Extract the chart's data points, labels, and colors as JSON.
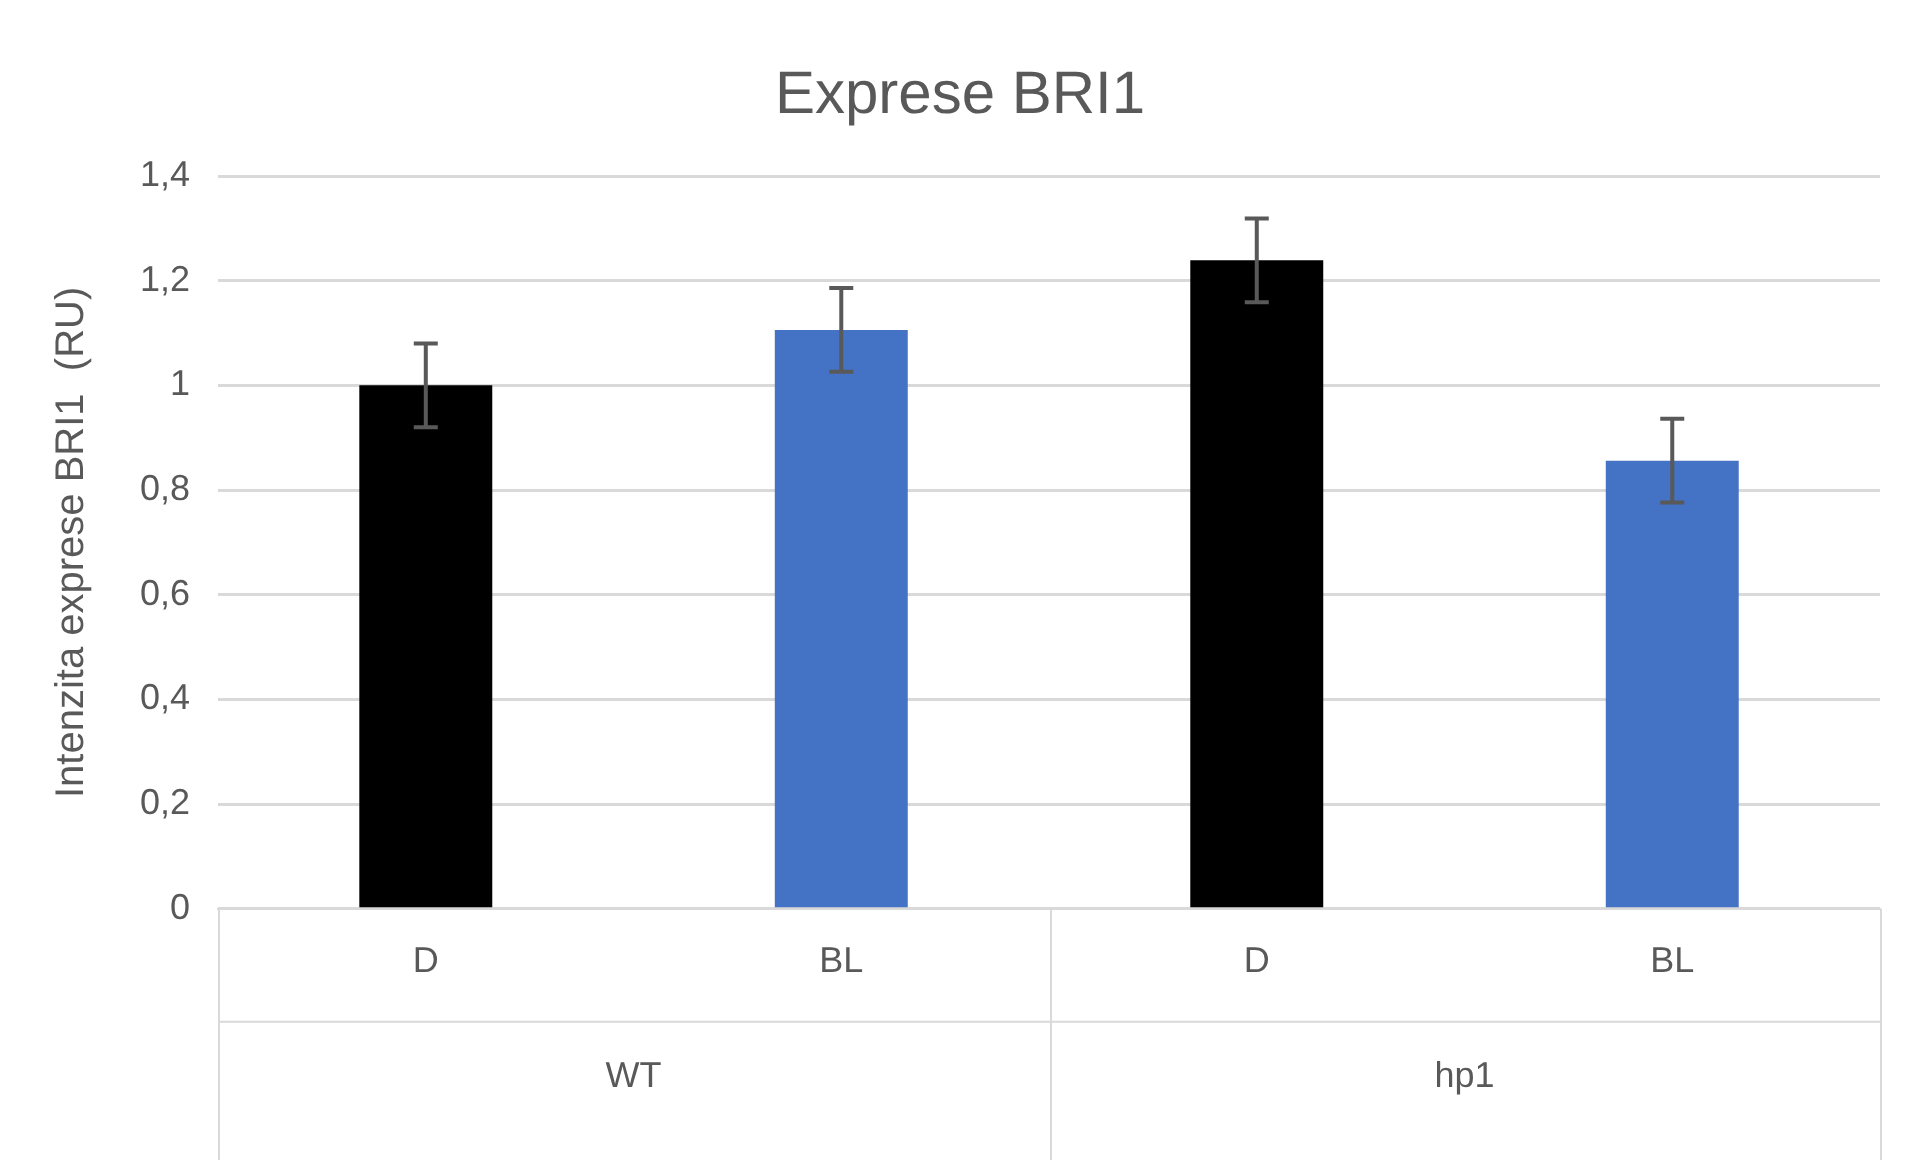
{
  "chart_data": {
    "type": "bar",
    "title": "Exprese BRI1",
    "ylabel": "Intenzita exprese BRI1  (RU)",
    "categories": [
      "D",
      "BL",
      "D",
      "BL"
    ],
    "values": [
      1.0,
      1.106,
      1.239,
      0.856
    ],
    "colors": [
      "#000000",
      "#4472c4",
      "#000000",
      "#4472c4"
    ],
    "errors": [
      0.08,
      0.08,
      0.08,
      0.08
    ],
    "ylim": [
      0,
      1.4
    ],
    "yticks": [
      0,
      {
        "value": 0.2,
        "label": "0,2"
      },
      {
        "value": 0.4,
        "label": "0,4"
      },
      {
        "value": 0.6,
        "label": "0,6"
      },
      {
        "value": 0.8,
        "label": "0,8"
      },
      1,
      {
        "value": 1.2,
        "label": "1,2"
      },
      {
        "value": 1.4,
        "label": "1,4"
      }
    ],
    "grid": "y",
    "legend": false,
    "annotations": [
      "WT",
      "hp1"
    ]
  }
}
